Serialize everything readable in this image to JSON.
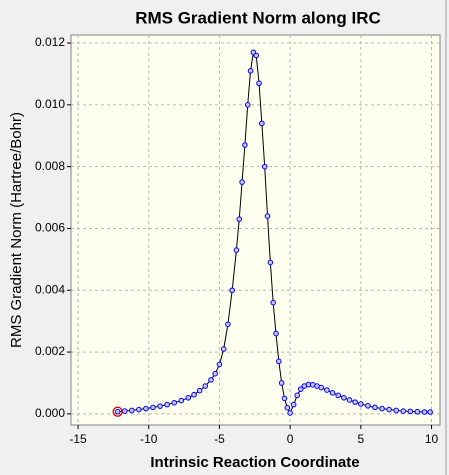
{
  "chart_data": {
    "type": "line",
    "title": "RMS Gradient Norm along IRC",
    "x_label": "Intrinsic Reaction Coordinate",
    "y_label": "RMS Gradient Norm (Hartree/Bohr)",
    "x": [
      -12.2,
      -11.7,
      -11.2,
      -10.7,
      -10.2,
      -9.7,
      -9.2,
      -8.7,
      -8.2,
      -7.7,
      -7.2,
      -6.8,
      -6.4,
      -6.0,
      -5.6,
      -5.3,
      -5.0,
      -4.7,
      -4.4,
      -4.1,
      -3.8,
      -3.6,
      -3.4,
      -3.2,
      -3.0,
      -2.8,
      -2.6,
      -2.4,
      -2.2,
      -2.0,
      -1.8,
      -1.6,
      -1.4,
      -1.2,
      -1.0,
      -0.8,
      -0.6,
      -0.4,
      -0.2,
      0.0,
      0.25,
      0.5,
      0.75,
      1.0,
      1.3,
      1.6,
      1.9,
      2.2,
      2.6,
      3.0,
      3.4,
      3.8,
      4.2,
      4.6,
      5.0,
      5.5,
      6.0,
      6.5,
      7.0,
      7.5,
      8.0,
      8.5,
      9.0,
      9.5,
      9.9
    ],
    "values": [
      7e-05,
      9e-05,
      0.00011,
      0.00014,
      0.00017,
      0.00021,
      0.00025,
      0.0003,
      0.00036,
      0.00043,
      0.00052,
      0.00062,
      0.00075,
      0.0009,
      0.0011,
      0.0013,
      0.0016,
      0.0021,
      0.0029,
      0.004,
      0.0053,
      0.0063,
      0.0075,
      0.0087,
      0.01,
      0.0111,
      0.0117,
      0.0116,
      0.0107,
      0.0094,
      0.008,
      0.0064,
      0.0049,
      0.0036,
      0.0026,
      0.0017,
      0.001,
      0.0005,
      0.0002,
      3e-05,
      0.0003,
      0.0006,
      0.0008,
      0.0009,
      0.00095,
      0.00094,
      0.0009,
      0.00085,
      0.00077,
      0.00068,
      0.0006,
      0.00052,
      0.00045,
      0.00038,
      0.00032,
      0.00026,
      0.00021,
      0.00017,
      0.00014,
      0.00011,
      9e-05,
      8e-05,
      7e-05,
      6e-05,
      6e-05
    ],
    "line_color": "#000000",
    "marker_color": "#0000ff",
    "marker_fill": "#c8c8ff",
    "current_point_index": 0,
    "current_point_color": "#e00000",
    "xlim": [
      -15.5,
      10.6
    ],
    "ylim": [
      -0.00036,
      0.01226
    ],
    "xticks": [
      -15,
      -10,
      -5,
      0,
      5,
      10
    ],
    "yticks": [
      {
        "value": 0,
        "label": "0.000"
      },
      {
        "value": 0.002,
        "label": "0.002"
      },
      {
        "value": 0.004,
        "label": "0.004"
      },
      {
        "value": 0.006,
        "label": "0.006"
      },
      {
        "value": 0.008,
        "label": "0.008"
      },
      {
        "value": 0.01,
        "label": "0.010"
      },
      {
        "value": 0.012,
        "label": "0.012"
      }
    ],
    "grid": true
  }
}
